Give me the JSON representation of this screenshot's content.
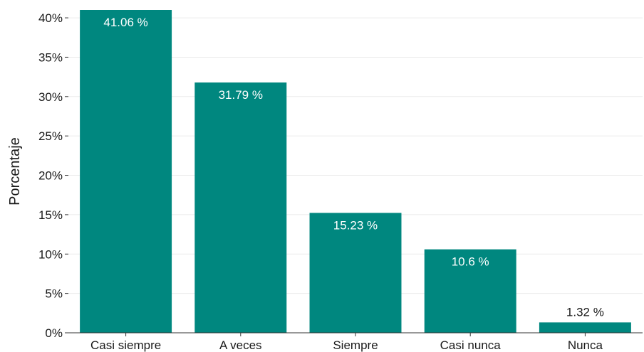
{
  "chart_data": {
    "type": "bar",
    "categories": [
      "Casi siempre",
      "A veces",
      "Siempre",
      "Casi nunca",
      "Nunca"
    ],
    "values": [
      41.06,
      31.79,
      15.23,
      10.6,
      1.32
    ],
    "value_labels": [
      "41.06 %",
      "31.79 %",
      "15.23 %",
      "10.6 %",
      "1.32 %"
    ],
    "title": "",
    "xlabel": "",
    "ylabel": "Porcentaje",
    "ylim": [
      0,
      41
    ],
    "yticks": [
      0,
      5,
      10,
      15,
      20,
      25,
      30,
      35,
      40
    ],
    "ytick_labels": [
      "0%",
      "5%",
      "10%",
      "15%",
      "20%",
      "25%",
      "30%",
      "35%",
      "40%"
    ],
    "grid": true,
    "legend": "none",
    "colors": {
      "bar": "#00877f",
      "grid": "#ebebeb",
      "label_inside": "#ffffff",
      "label_outside": "#1a1a1a"
    }
  }
}
